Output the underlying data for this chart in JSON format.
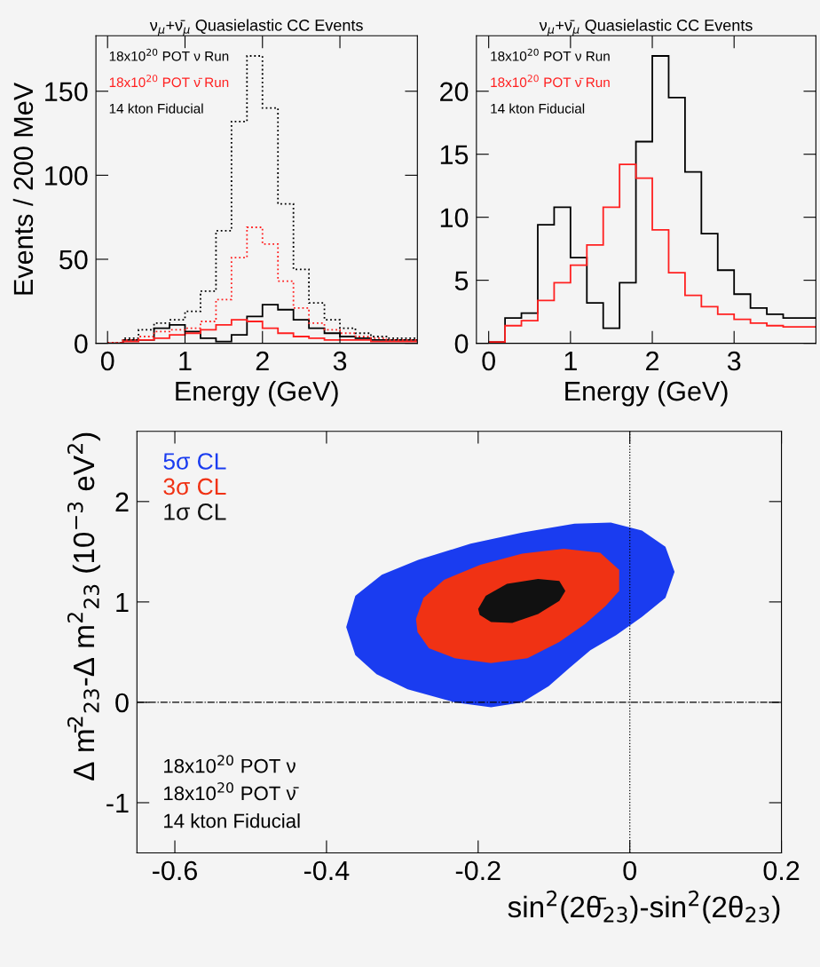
{
  "chart_data": [
    {
      "type": "histogram",
      "title": "ν$_{μ}$+ν̄$_{μ}$ Quasielastic CC Events",
      "xlabel": "Energy (GeV)",
      "ylabel": "Events / 200 MeV",
      "bins": [
        0,
        0.2,
        0.4,
        0.6,
        0.8,
        1.0,
        1.2,
        1.4,
        1.6,
        1.8,
        2.0,
        2.2,
        2.4,
        2.6,
        2.8,
        3.0,
        3.2,
        3.4,
        3.6,
        3.8,
        4.0
      ],
      "series": [
        {
          "name": "18x10$^{20}$ POT ν Run",
          "color": "#000000",
          "line_style": "solid",
          "values": [
            0,
            2,
            2,
            9,
            11,
            7,
            3,
            1,
            5,
            16,
            23,
            20,
            14,
            9,
            6,
            4,
            3,
            2,
            2,
            2
          ]
        },
        {
          "name": "18x10$^{20}$ POT ν̄ Run",
          "color": "#ff2020",
          "line_style": "solid",
          "values": [
            0,
            1,
            2,
            3,
            5,
            6,
            8,
            11,
            14,
            13,
            9,
            6,
            4,
            3,
            2,
            2,
            2,
            1,
            1,
            1
          ]
        },
        {
          "color": "#000000",
          "line_style": "dotted",
          "values": [
            0.4,
            3,
            8,
            12,
            14,
            19,
            31,
            67,
            132,
            171,
            140,
            83,
            44,
            24,
            14,
            9,
            6,
            4,
            3,
            3
          ]
        },
        {
          "color": "#ff2020",
          "line_style": "dotted",
          "values": [
            0.3,
            2,
            4,
            7,
            8,
            9,
            13,
            26,
            51,
            69,
            59,
            37,
            21,
            12,
            8,
            6,
            4,
            3,
            2,
            2
          ]
        }
      ],
      "annotations": [
        "14 kton Fiducial"
      ],
      "legend": "top left",
      "xlim": [
        -0.15,
        4.0
      ],
      "ylim": [
        0,
        183
      ],
      "xticks": [
        0,
        1,
        2,
        3
      ],
      "yticks": [
        0,
        50,
        100,
        150
      ],
      "grid": false
    },
    {
      "type": "histogram",
      "title": "ν$_{μ}$+ν̄$_{μ}$ Quasielastic CC Events",
      "xlabel": "Energy (GeV)",
      "bins": [
        0,
        0.2,
        0.4,
        0.6,
        0.8,
        1.0,
        1.2,
        1.4,
        1.6,
        1.8,
        2.0,
        2.2,
        2.4,
        2.6,
        2.8,
        3.0,
        3.2,
        3.4,
        3.6,
        3.8,
        4.0
      ],
      "series": [
        {
          "name": "18x10$^{20}$ POT ν Run",
          "color": "#000000",
          "line_style": "solid",
          "values": [
            0.1,
            2.0,
            2.4,
            9.4,
            10.8,
            6.8,
            3.2,
            1.2,
            4.8,
            16.0,
            22.8,
            19.5,
            13.6,
            8.7,
            5.8,
            3.9,
            2.8,
            2.3,
            2.0,
            2.0
          ]
        },
        {
          "name": "18x10$^{20}$ POT ν̄ Run",
          "color": "#ff2020",
          "line_style": "solid",
          "values": [
            0.1,
            1.4,
            1.8,
            3.4,
            4.8,
            6.2,
            7.8,
            10.8,
            14.2,
            13.1,
            9.0,
            5.6,
            3.8,
            2.9,
            2.3,
            1.9,
            1.6,
            1.4,
            1.3,
            1.3
          ]
        }
      ],
      "annotations": [
        "14 kton Fiducial"
      ],
      "legend": "top left",
      "xlim": [
        -0.15,
        4.0
      ],
      "ylim": [
        0,
        24.4
      ],
      "xticks": [
        0,
        1,
        2,
        3
      ],
      "yticks": [
        0,
        5,
        10,
        15,
        20
      ],
      "grid": false
    },
    {
      "type": "area",
      "xlabel": "sin$^{2}$(2θ̄$_{23}$)-sin$^{2}$(2θ$_{23}$)",
      "ylabel": "Δ m̄$^{2}$$_{23}$-Δ m$^{2}$$_{23}$ (10$^{−3}$ eV$^{2}$)",
      "series": [
        {
          "name": "5σ CL",
          "color": "#1a3cf0",
          "x": [
            -0.374,
            -0.362,
            -0.327,
            -0.279,
            -0.21,
            -0.142,
            -0.073,
            -0.025,
            0.016,
            0.047,
            0.059,
            0.047,
            0.016,
            -0.018,
            -0.052,
            -0.08,
            -0.107,
            -0.142,
            -0.183,
            -0.231,
            -0.293,
            -0.334,
            -0.362
          ],
          "values": [
            0.75,
            1.06,
            1.27,
            1.42,
            1.58,
            1.69,
            1.78,
            1.79,
            1.71,
            1.55,
            1.3,
            1.04,
            0.85,
            0.67,
            0.52,
            0.34,
            0.16,
            0.0,
            -0.05,
            0.0,
            0.13,
            0.28,
            0.47
          ]
        },
        {
          "name": "3σ CL",
          "color": "#f03214",
          "x": [
            -0.282,
            -0.272,
            -0.245,
            -0.197,
            -0.142,
            -0.087,
            -0.039,
            -0.014,
            -0.014,
            -0.032,
            -0.059,
            -0.093,
            -0.135,
            -0.183,
            -0.231,
            -0.265,
            -0.28
          ],
          "values": [
            0.83,
            1.04,
            1.22,
            1.37,
            1.48,
            1.53,
            1.49,
            1.32,
            1.11,
            0.96,
            0.78,
            0.6,
            0.44,
            0.39,
            0.44,
            0.54,
            0.7
          ]
        },
        {
          "name": "1σ CL",
          "color": "#111111",
          "x": [
            -0.2,
            -0.19,
            -0.162,
            -0.121,
            -0.093,
            -0.085,
            -0.093,
            -0.121,
            -0.155,
            -0.183,
            -0.198
          ],
          "values": [
            0.93,
            1.06,
            1.18,
            1.23,
            1.21,
            1.11,
            1.01,
            0.88,
            0.79,
            0.8,
            0.87
          ]
        }
      ],
      "ref_lines": [
        {
          "axis": "x",
          "value": 0,
          "line_style": "dotted",
          "color": "#000000"
        },
        {
          "axis": "y",
          "value": 0,
          "line_style": "dashdot",
          "color": "#000000"
        }
      ],
      "annotations": [
        "18x10$^{20}$ POT ν",
        "18x10$^{20}$ POT ν̄",
        "14 kton Fiducial"
      ],
      "legend": "top left",
      "xlim": [
        -0.65,
        0.2
      ],
      "ylim": [
        -1.5,
        2.7
      ],
      "xticks": [
        -0.6,
        -0.4,
        -0.2,
        0,
        0.2
      ],
      "yticks": [
        -1,
        0,
        1,
        2
      ],
      "grid": false
    }
  ]
}
